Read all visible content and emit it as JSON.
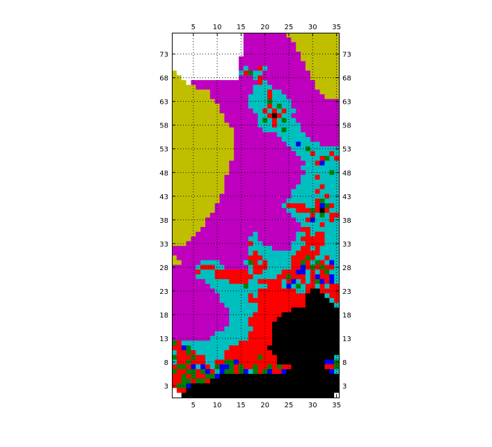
{
  "chart_data": {
    "type": "heatmap",
    "title": "",
    "xlabel": "",
    "ylabel": "",
    "xlim": [
      0.5,
      35.5
    ],
    "ylim": [
      0.5,
      77.5
    ],
    "x_ticks": [
      5,
      10,
      15,
      20,
      25,
      30,
      35
    ],
    "y_ticks": [
      3,
      8,
      13,
      18,
      23,
      28,
      33,
      38,
      43,
      48,
      53,
      58,
      63,
      68,
      73
    ],
    "x_tick_labels": [
      "5",
      "10",
      "15",
      "20",
      "25",
      "30",
      "35"
    ],
    "y_tick_labels": [
      "3",
      "8",
      "13",
      "18",
      "23",
      "28",
      "33",
      "38",
      "43",
      "48",
      "53",
      "58",
      "63",
      "68",
      "73"
    ],
    "grid": true,
    "grid_style": "dotted",
    "ticks_on": [
      "left",
      "right",
      "top",
      "bottom"
    ],
    "palette": {
      "W": "#ffffff",
      "Y": "#bfbf00",
      "M": "#bf00bf",
      "C": "#00bfbf",
      "R": "#ff0000",
      "G": "#007f00",
      "B": "#0000ff",
      "K": "#000000"
    },
    "grid_rows_top_to_bottom": [
      "WWWWWWWWWWWWWWWMMMMMMMMMYYYYYYYYYYY",
      "WWWWWWWWWWWWWWWMMMMMMMMMMYYYYYYYYYY",
      "WWWWWWWWWWWWWWWMMMMMMMMMMMYYYYYYYYY",
      "WWWWWWWWWWWWWWWMMMMMMMMMMMYYYYYYYYY",
      "WWWWWWWWWWWWWWWMMMMMMMMMMMMYYYYYYYY",
      "WWWWWWWWWWWWWWMMMMMMMMMMMMMYYYYYYYY",
      "WWWWWWWWWWWWWWMMMMMMMMMMMMMMYYYYYYY",
      "WWWWWWWWWWWWWWMCMMRCMMMMMMMMYYYYYYY",
      "YWWWWWWWWWWWWWCRGCCMMMMMMMMMMYYYYYY",
      "YYWWWWWWWWWWWWMMMCRMMMMMMMMMMYYYYYY",
      "YYYWMMMMMMMMMMMMMMRCMMMMMMMMMMYYYYY",
      "YYYYYMMMMMMMMMMMMCCCCMMMMMMMMMYYYYY",
      "YYYYYYYYMMMMMMMMMCCCRCCMMMMMMMMYYYY",
      "YYYYYYYYMMMMMMMMCCCCRCCCMMMMMMMMYYY",
      "YYYYYYYYYMMMMMMMCCCCGCCCCMMMMMMMMMM",
      "YYYYYYYYYYMMMMMMCCCCRCGCCMMMMMMMMMM",
      "YYYYYYYYYYMMMMMMMCCRCRCRCCMMMMMMMMM",
      "YYYYYYYYYYYMMMMMMMCCRKRCCMMMMMMMMMM",
      "YYYYYYYYYYYMMMMMMMCGCRCGCCMMMMMMMMM",
      "YYYYYYYYYYYYMMMMMMCCCRCCCCCMMMMMMMM",
      "YYYYYYYYYYYYYMMMMMMCCCCGCCCMMMMMMMM",
      "YYYYYYYYYYYYYMMMMMMMMMCCCCCCMMMMMMM",
      "YYYYYYYYYYYYYMMMMMMMMMMCCCCCCMMMMMM",
      "YYYYYYYYYYYYYMMMMMMMMMMMCCBCCCCMMMM",
      "YYYYYYYYYYYYYMMMMMMMMMMMMCCCGCCCCCC",
      "YYYYYYYYYYYYYMMMMMMMMMMMMMCCCRCCCRC",
      "YYYYYYYYYYYYYMMMMMMMMMMMMMMCCCCRGCR",
      "YYYYYYYYYYYYMMMMMMMMMMMMMMMMCCRBCCC",
      "YYYYYYYYYYYYMMMMMMMMMMMMMMMCCCCCCCC",
      "YYYYYYYYYYYYMMMMMMMMMMMMMMMMCCCCCGC",
      "YYYYYYYYYYYMMMMMMMMMMMMMMMMCCCRCCCC",
      "YYYYYYYYYYYMMMMMMMMMMMMMMMMCCCCCCCC",
      "YYYYYYYYYYYMMMMMMMMMMMMMMMCCCCCRCCC",
      "YYYYYYYYYYYMMMMMMMMMMMMMMCCCCCRCCCC",
      "YYYYYYYYYYMMMMMMMMMMMMMMMCCCCCCCRCC",
      "YYYYYYYYYYMMMMMMMMMMMMMMCCCCCCRGCCC",
      "YYYYYYYYYMMMMMMMMMMMMMMCRRRRCCRBGRC",
      "YYYYYYYYYMMMMMMMMMMMMMMMCCRRRGRKRCC",
      "YYYYYYYYMMMMMMMMMMMMMMMMMCCCCRCGCRR",
      "YYYYYYYMMMMMMMMMMMMMMMMMMMCCRBCCCRC",
      "YYYYYYYMMMMMMMMMMMMMMMMMMMMCCCCRCCC",
      "YYYYYYMMMMMMMMMMMMMMMMMMMMMRRCCCCCC",
      "YYYYYMMMMMMMMMMMMCMMMMMMMMCCRCRRCCC",
      "YYYYMMMMMMMMMMMMCCMMMMMMMMCRRRRRCCC",
      "YYYMMMMMMMMMMMMMRCCMMMMMMCCCRRRRCCC",
      "MMMMMMMMMMMMMMMMCCCCCMMMMCCRRCRCCCC",
      "MMMMMMMMMMMMMMMMCRCCCCCCCCRRRRRCCCC",
      "YMMMMMMMMMMMMMMMRRRCCCCCCRRRGRCCRCC",
      "YYMMMMCCCCMMMMMCGRCRCCCCCRRGRCGRCBC",
      "MMMMMCRRRCCMMMMMCRRRCCCCCRRBRGRGRRC",
      "MMMMMRCCCRRRRRRRCRRCCCCRRRBBCRCRGCC",
      "MMMMMCCCCRRRRRRRRCCCCCRRGRRRCRBRRBC",
      "MMMMMMMCCCCCRRRRCCRRRRRCRBCRCRGBRBC",
      "MMMMMMMMCCCCCCCGCCCCRRRCBCGCRRCRCRR",
      "MMMMMMMMMCCCCCCCCCRRRRRRRRCCRKKRRRR",
      "MMMMMMMMMMCCCCCCRCRRRRRRRRRRKKKKCRR",
      "MMMMMMMMMMCCCCCCRRRRRRRRRRRRKKKKKCR",
      "MMMMMMMMMMMCCCCCCCRRRRRRRRRRKKKKKKC",
      "MMMMMMMMMMMMCCCCCCRRRRRRRKKKKKKKKKK",
      "MMMMMMMMMMMMCCCCCRRRRRRKKKKKKKKKKKK",
      "MMMMMMMMMMMMCCCCRRRRRRKKKKKKKKKKKKK",
      "MMMMMMMMMMMMCCCCRRRRRKKKKKKKKKKKKKK",
      "MMMMMMMMMMMCCCCCCRRRRKKKKKKKKKKKKKK",
      "MMMMMMMMMCCCCCCCRRRRRKKKKKKKKKKKKKK",
      "MMMMMMMMCCCCCCCCRRRRRKKKKKKKKKKKKKK",
      "GRCCCCCCCCCCCCRRRRRRRKKKKKKKKKKKKKK",
      "RRBGCCCCCCCCRRRRRRRRKKKKKKKKKKKKKKK",
      "CRRGRCCCCCCRRRRRRRRRRKKKKKKKKKKKKKK",
      "GRRRGRRCCCCRRRRRRRGRRRKKKKKKKKKKKKC",
      "CRRGRRRCCRRGGBRRRRRRRRKKKKKKKKKKBBG",
      "RGGRBCBRCGBBGRGRRGRRGRGRRKKKKKKKRRG",
      "GRRGGRGBRCBGGRGBCGRGBRRBKKKKKKKKKBC",
      "RRGRGRRGGBKKKKKKKKKKKKKKKKKKKKKKKKK",
      "RRGGRGGRKKKKKKKKKKKKKKKKKKKKKKKKKKK",
      "RGGBKKKKKKKKKKKKKKKKKKKKKKKKKKKKKKK",
      "WRRKKKKKKKKKKKKKKKKKKKKKKKKKKKKKKKK",
      "WWKKKKKKKKKKKKKKKKKKKKKKKKKKKKKKKKW"
    ]
  }
}
